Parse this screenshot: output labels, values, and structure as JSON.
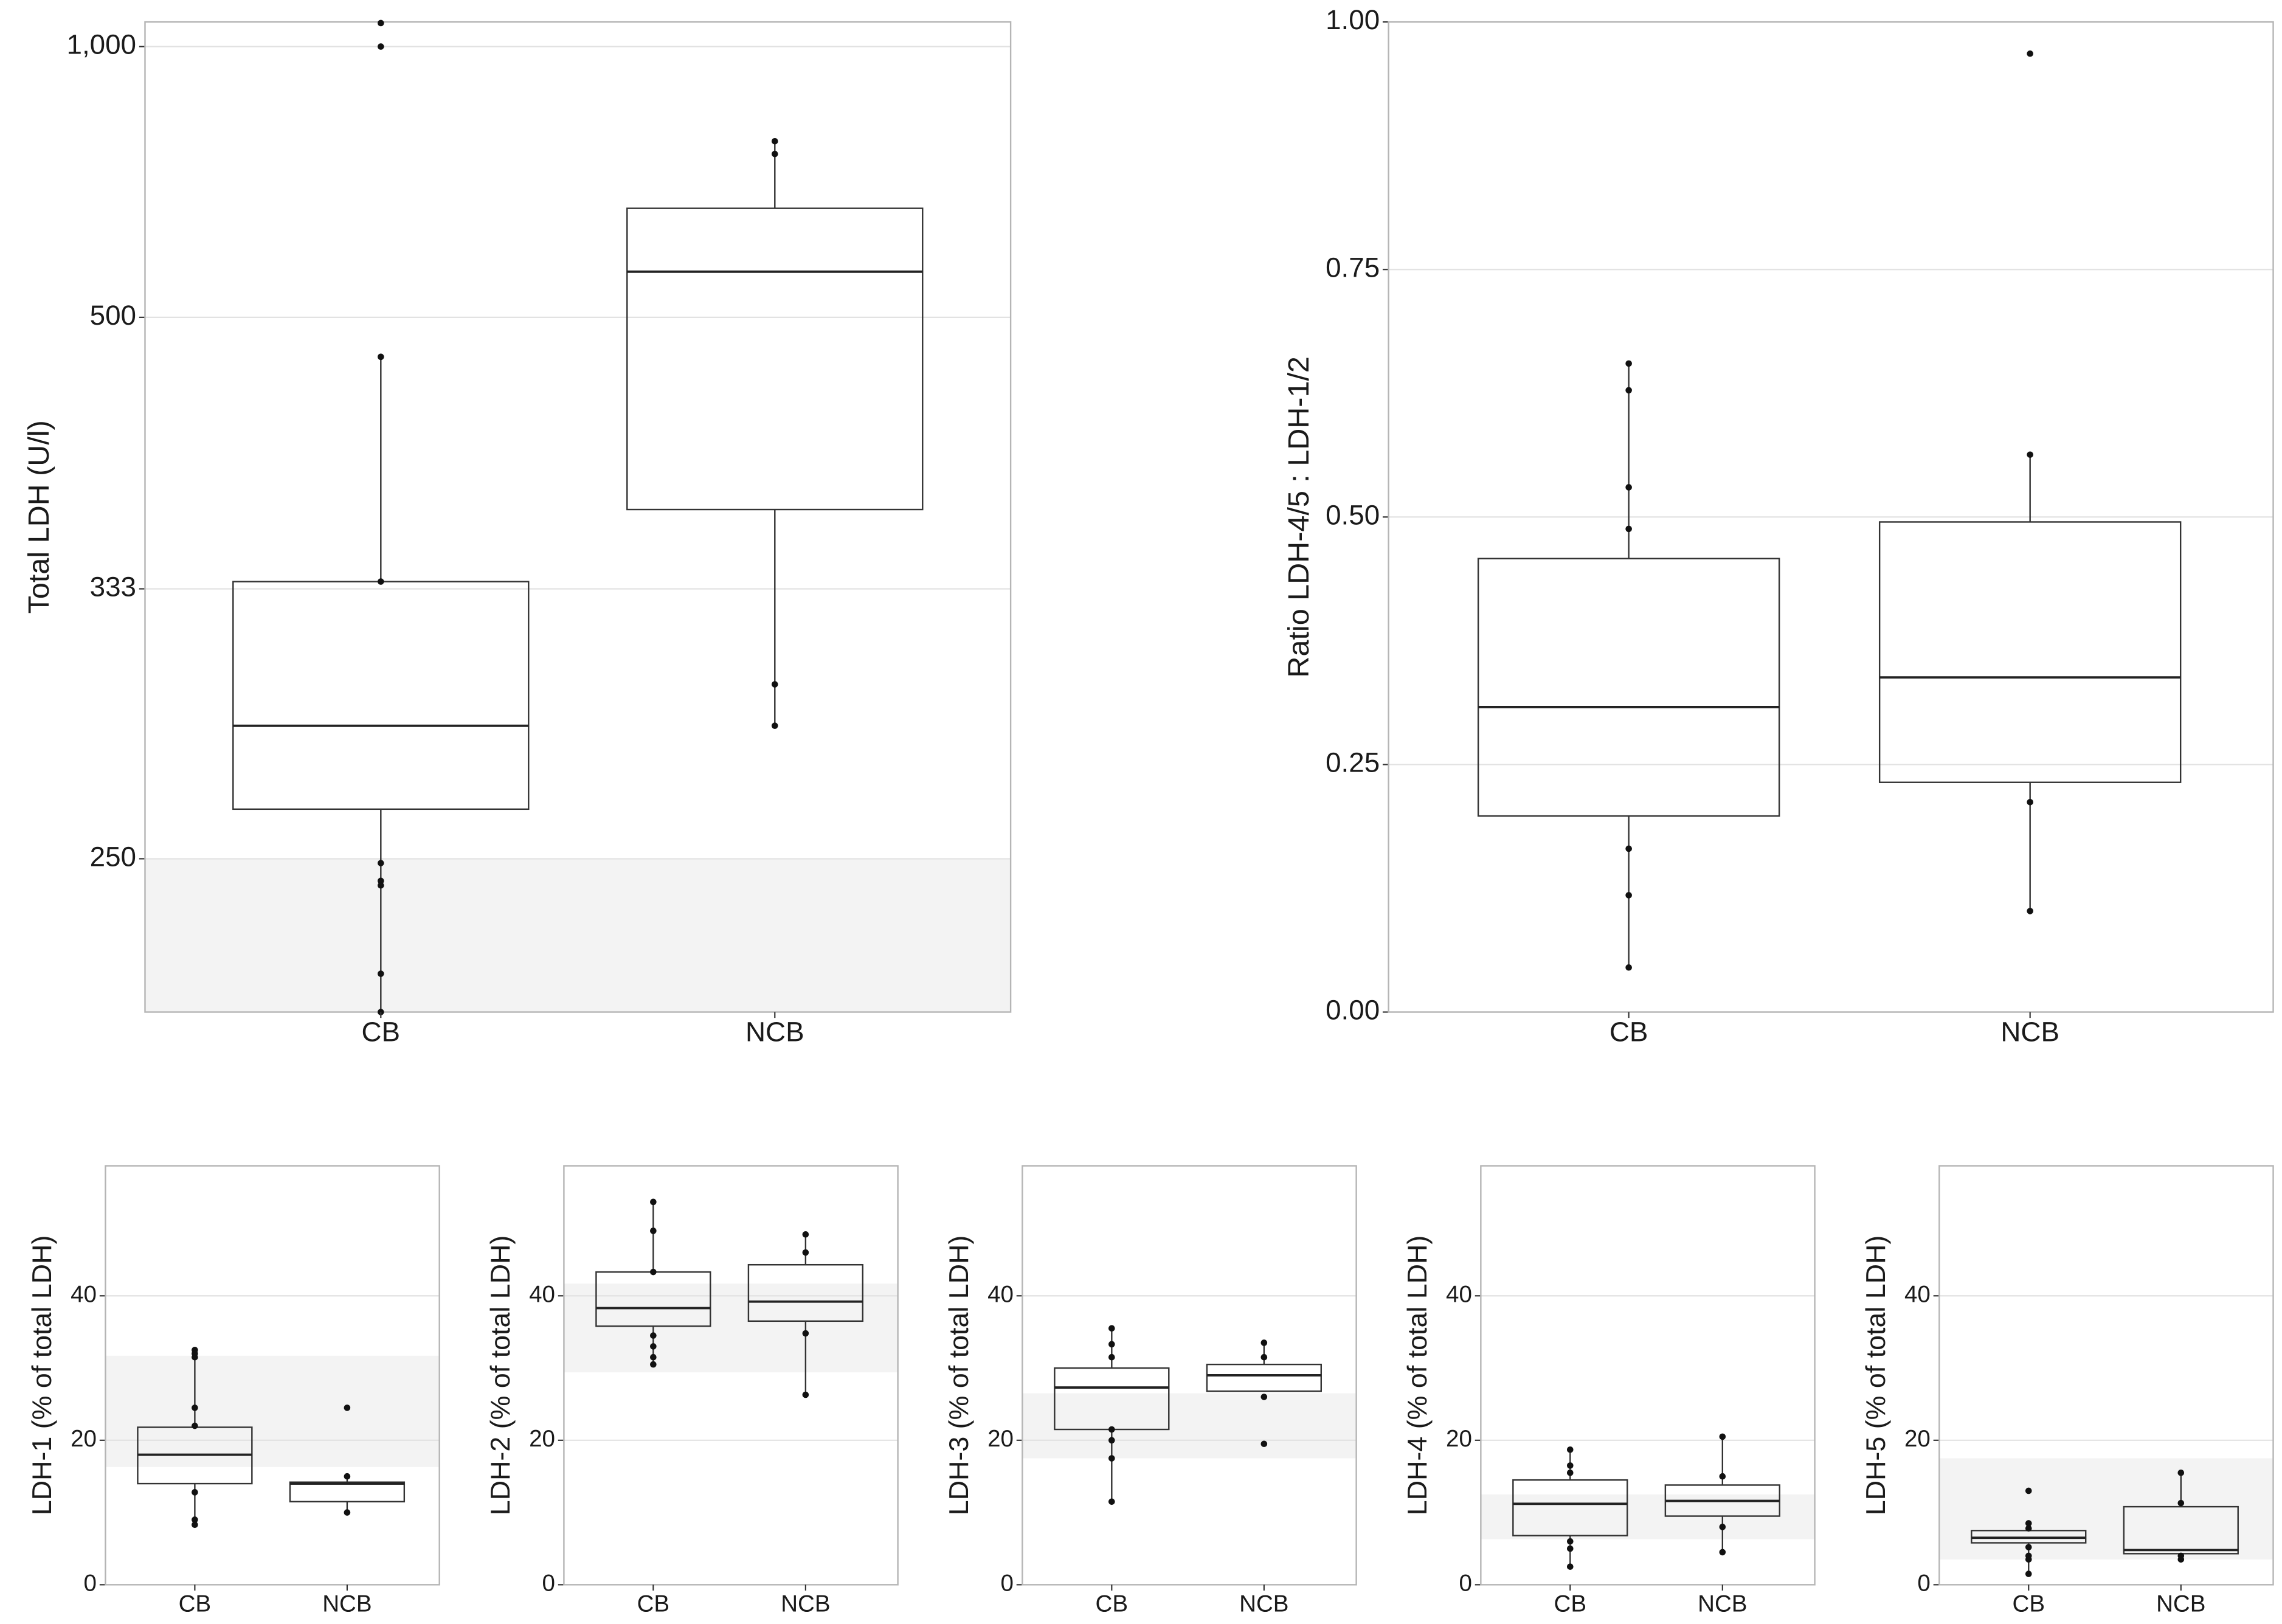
{
  "chart_data": [
    {
      "id": "total_ldh",
      "type": "boxplot",
      "ylabel": "Total LDH (U/l)",
      "yscale": "reciprocal",
      "yticks": [
        250,
        333,
        500,
        1000
      ],
      "ytick_labels": [
        "250",
        "333",
        "500",
        "1,000"
      ],
      "ylim": [
        219,
        1100
      ],
      "categories": [
        "CB",
        "NCB"
      ],
      "reference_band": [
        219,
        250
      ],
      "boxes": [
        {
          "label": "CB",
          "lower_whisker": 219,
          "q1": 262,
          "median": 285,
          "q3": 336,
          "upper_whisker": 466,
          "points": [
            1095,
            1000,
            466,
            336,
            249,
            245,
            244,
            226,
            219
          ]
        },
        {
          "label": "NCB",
          "lower_whisker": 285,
          "q1": 369,
          "median": 546,
          "q3": 626,
          "upper_whisker": 741,
          "points": [
            741,
            716,
            298,
            285
          ]
        }
      ]
    },
    {
      "id": "ratio",
      "type": "boxplot",
      "ylabel": "Ratio LDH-4/5 : LDH-1/2",
      "yscale": "linear",
      "yticks": [
        0,
        0.25,
        0.5,
        0.75,
        1.0
      ],
      "ytick_labels": [
        "0.00",
        "0.25",
        "0.50",
        "0.75",
        "1.00"
      ],
      "ylim": [
        0,
        1.0
      ],
      "categories": [
        "CB",
        "NCB"
      ],
      "boxes": [
        {
          "label": "CB",
          "lower_whisker": 0.045,
          "q1": 0.198,
          "median": 0.308,
          "q3": 0.458,
          "upper_whisker": 0.655,
          "points": [
            0.655,
            0.628,
            0.53,
            0.488,
            0.165,
            0.118,
            0.045
          ]
        },
        {
          "label": "NCB",
          "lower_whisker": 0.102,
          "q1": 0.232,
          "median": 0.338,
          "q3": 0.495,
          "upper_whisker": 0.563,
          "points": [
            0.968,
            0.563,
            0.212,
            0.102
          ]
        }
      ]
    },
    {
      "id": "ldh1",
      "type": "boxplot",
      "ylabel": "LDH-1 (% of total LDH)",
      "yscale": "linear",
      "yticks": [
        0,
        20,
        40
      ],
      "ytick_labels": [
        "0",
        "20",
        "40"
      ],
      "ylim": [
        0,
        58
      ],
      "categories": [
        "CB",
        "NCB"
      ],
      "reference_band": [
        16.3,
        31.7
      ],
      "boxes": [
        {
          "label": "CB",
          "lower_whisker": 8.3,
          "q1": 14,
          "median": 18,
          "q3": 21.8,
          "upper_whisker": 32.5,
          "points": [
            32.5,
            32,
            31.5,
            24.5,
            22,
            12.8,
            9,
            8.3
          ]
        },
        {
          "label": "NCB",
          "lower_whisker": 10,
          "q1": 11.5,
          "median": 14,
          "q3": 14.2,
          "upper_whisker": 15,
          "points": [
            24.5,
            15,
            10
          ]
        }
      ]
    },
    {
      "id": "ldh2",
      "type": "boxplot",
      "ylabel": "LDH-2 (% of total LDH)",
      "yscale": "linear",
      "yticks": [
        0,
        20,
        40
      ],
      "ytick_labels": [
        "0",
        "20",
        "40"
      ],
      "ylim": [
        0,
        58
      ],
      "categories": [
        "CB",
        "NCB"
      ],
      "reference_band": [
        29.4,
        41.7
      ],
      "boxes": [
        {
          "label": "CB",
          "lower_whisker": 30.5,
          "q1": 35.8,
          "median": 38.3,
          "q3": 43.3,
          "upper_whisker": 53,
          "points": [
            53,
            49,
            43.3,
            34.5,
            33,
            31.5,
            30.5
          ]
        },
        {
          "label": "NCB",
          "lower_whisker": 26.3,
          "q1": 36.5,
          "median": 39.2,
          "q3": 44.3,
          "upper_whisker": 48.5,
          "points": [
            48.5,
            46,
            34.8,
            26.3
          ]
        }
      ]
    },
    {
      "id": "ldh3",
      "type": "boxplot",
      "ylabel": "LDH-3 (% of total LDH)",
      "yscale": "linear",
      "yticks": [
        0,
        20,
        40
      ],
      "ytick_labels": [
        "0",
        "20",
        "40"
      ],
      "ylim": [
        0,
        58
      ],
      "categories": [
        "CB",
        "NCB"
      ],
      "reference_band": [
        17.5,
        26.5
      ],
      "boxes": [
        {
          "label": "CB",
          "lower_whisker": 11.5,
          "q1": 21.5,
          "median": 27.3,
          "q3": 30,
          "upper_whisker": 35.5,
          "points": [
            35.5,
            33.3,
            31.5,
            21.5,
            20,
            17.5,
            11.5
          ]
        },
        {
          "label": "NCB",
          "lower_whisker": 26.8,
          "q1": 26.8,
          "median": 29,
          "q3": 30.5,
          "upper_whisker": 33.5,
          "points": [
            33.5,
            31.5,
            26,
            19.5
          ]
        }
      ]
    },
    {
      "id": "ldh4",
      "type": "boxplot",
      "ylabel": "LDH-4 (% of total LDH)",
      "yscale": "linear",
      "yticks": [
        0,
        20,
        40
      ],
      "ytick_labels": [
        "0",
        "20",
        "40"
      ],
      "ylim": [
        0,
        58
      ],
      "categories": [
        "CB",
        "NCB"
      ],
      "reference_band": [
        6.3,
        12.5
      ],
      "boxes": [
        {
          "label": "CB",
          "lower_whisker": 2.5,
          "q1": 6.8,
          "median": 11.2,
          "q3": 14.5,
          "upper_whisker": 18.7,
          "points": [
            18.7,
            16.5,
            15.5,
            6,
            5,
            2.5
          ]
        },
        {
          "label": "NCB",
          "lower_whisker": 4.5,
          "q1": 9.5,
          "median": 11.6,
          "q3": 13.8,
          "upper_whisker": 20.5,
          "points": [
            20.5,
            15,
            8,
            4.5
          ]
        }
      ]
    },
    {
      "id": "ldh5",
      "type": "boxplot",
      "ylabel": "LDH-5 (% of total LDH)",
      "yscale": "linear",
      "yticks": [
        0,
        20,
        40
      ],
      "ytick_labels": [
        "0",
        "20",
        "40"
      ],
      "ylim": [
        0,
        58
      ],
      "categories": [
        "CB",
        "NCB"
      ],
      "reference_band": [
        3.5,
        17.5
      ],
      "boxes": [
        {
          "label": "CB",
          "lower_whisker": 1.5,
          "q1": 5.8,
          "median": 6.5,
          "q3": 7.5,
          "upper_whisker": 8.5,
          "points": [
            13,
            8.5,
            7.8,
            5.2,
            4,
            3.5,
            1.5
          ]
        },
        {
          "label": "NCB",
          "lower_whisker": 3.5,
          "q1": 4.3,
          "median": 4.8,
          "q3": 10.8,
          "upper_whisker": 15.5,
          "points": [
            15.5,
            11.3,
            4,
            3.5
          ]
        }
      ]
    }
  ]
}
